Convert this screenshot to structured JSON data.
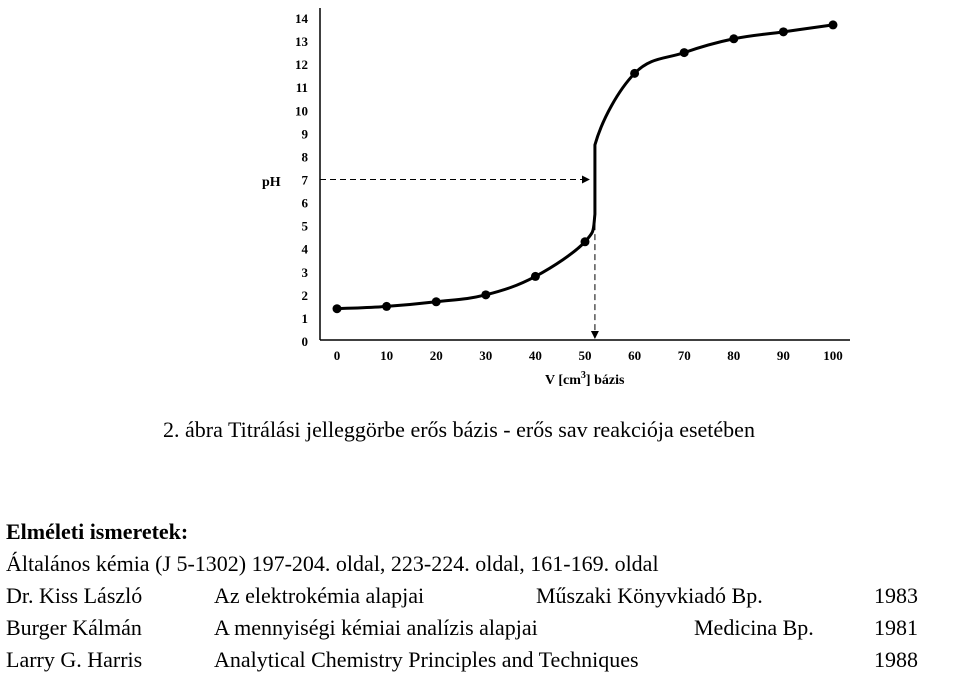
{
  "chart_data": {
    "type": "line",
    "title": "",
    "xlabel": "V [cm",
    "xlabel_sup": "3",
    "xlabel_suffix": "] bázis",
    "ylabel": "pH",
    "xlim": [
      0,
      100
    ],
    "ylim": [
      0,
      14
    ],
    "x_ticks": [
      0,
      10,
      20,
      30,
      40,
      50,
      60,
      70,
      80,
      90,
      100
    ],
    "y_ticks": [
      0,
      1,
      2,
      3,
      4,
      5,
      6,
      7,
      8,
      9,
      10,
      11,
      12,
      13,
      14
    ],
    "grid": false,
    "series": [
      {
        "x": [
          0,
          10,
          20,
          30,
          40,
          50,
          52,
          52,
          60,
          70,
          80,
          90,
          100
        ],
        "y": [
          1.4,
          1.5,
          1.7,
          2.0,
          2.8,
          4.3,
          5.5,
          8.5,
          11.6,
          12.5,
          13.1,
          13.4,
          13.7
        ]
      }
    ],
    "markers_x": [
      0,
      10,
      20,
      30,
      40,
      50,
      60,
      70,
      80,
      90,
      100
    ],
    "markers_y": [
      1.4,
      1.5,
      1.7,
      2.0,
      2.8,
      4.3,
      11.6,
      12.5,
      13.1,
      13.4,
      13.7
    ],
    "equivalence_point": {
      "x": 52,
      "y": 7
    }
  },
  "caption": "2. ábra Titrálási jelleggörbe erős bázis - erős sav reakciója esetében",
  "references": {
    "title": "Elméleti ismeretek:",
    "general": "Általános kémia (J 5-1302) 197-204. oldal, 223-224. oldal, 161-169. oldal",
    "books": [
      {
        "author": "Dr. Kiss László",
        "title": "Az elektrokémia alapjai",
        "publisher": "Műszaki Könyvkiadó  Bp.",
        "year": "1983"
      },
      {
        "author": "Burger Kálmán",
        "title": "A mennyiségi kémiai analízis alapjai",
        "publisher": "Medicina  Bp.",
        "year": "1981"
      },
      {
        "author": "Larry G. Harris",
        "title": "Analytical Chemistry Principles and Techniques",
        "publisher": "",
        "year": "1988"
      }
    ]
  }
}
